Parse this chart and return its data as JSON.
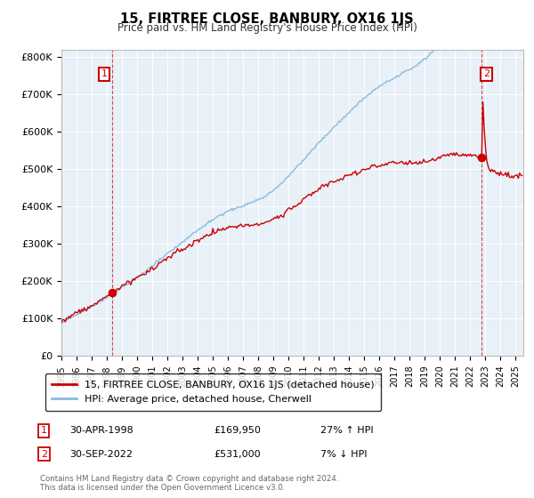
{
  "title": "15, FIRTREE CLOSE, BANBURY, OX16 1JS",
  "subtitle": "Price paid vs. HM Land Registry's House Price Index (HPI)",
  "ylabel_ticks": [
    "£0",
    "£100K",
    "£200K",
    "£300K",
    "£400K",
    "£500K",
    "£600K",
    "£700K",
    "£800K"
  ],
  "ytick_values": [
    0,
    100000,
    200000,
    300000,
    400000,
    500000,
    600000,
    700000,
    800000
  ],
  "ylim": [
    0,
    820000
  ],
  "xlim_start": 1995.0,
  "xlim_end": 2025.5,
  "sale1_x": 1998.33,
  "sale1_y": 169950,
  "sale2_x": 2022.75,
  "sale2_y": 531000,
  "sale1_label": "30-APR-1998",
  "sale1_price": "£169,950",
  "sale1_hpi": "27% ↑ HPI",
  "sale2_label": "30-SEP-2022",
  "sale2_price": "£531,000",
  "sale2_hpi": "7% ↓ HPI",
  "legend_line1": "15, FIRTREE CLOSE, BANBURY, OX16 1JS (detached house)",
  "legend_line2": "HPI: Average price, detached house, Cherwell",
  "footer": "Contains HM Land Registry data © Crown copyright and database right 2024.\nThis data is licensed under the Open Government Licence v3.0.",
  "sale_color": "#cc0000",
  "hpi_color": "#88bbdd",
  "bg_color": "#e8f0f8",
  "grid_color": "#ffffff"
}
